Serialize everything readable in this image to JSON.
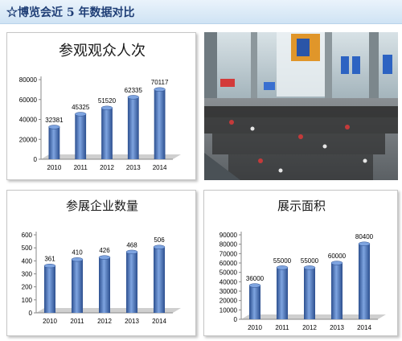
{
  "header": {
    "title": "☆博览会近 5 年数据对比"
  },
  "colors": {
    "bar": "#4a78c4",
    "bar_dark": "#2c4f8f",
    "bar_light": "#7ea4e0",
    "floor": "#cfcfcf"
  },
  "chart_data": [
    {
      "type": "bar",
      "title": "参观观众人次",
      "categories": [
        "2010",
        "2011",
        "2012",
        "2013",
        "2014"
      ],
      "values": [
        32381,
        45325,
        51520,
        62335,
        70117
      ],
      "ylim": [
        0,
        80000
      ],
      "yticks": [
        0,
        20000,
        40000,
        60000,
        80000
      ],
      "grid": false
    },
    {
      "type": "bar",
      "title": "参展企业数量",
      "categories": [
        "2010",
        "2011",
        "2012",
        "2013",
        "2014"
      ],
      "values": [
        361,
        410,
        426,
        468,
        506
      ],
      "ylim": [
        0,
        600
      ],
      "yticks": [
        0,
        100,
        200,
        300,
        400,
        500,
        600
      ],
      "grid": false
    },
    {
      "type": "bar",
      "title": "展示面积",
      "categories": [
        "2010",
        "2011",
        "2012",
        "2013",
        "2014"
      ],
      "values": [
        36000,
        55000,
        55000,
        60000,
        80400
      ],
      "ylim": [
        0,
        90000
      ],
      "yticks": [
        0,
        10000,
        20000,
        30000,
        40000,
        50000,
        60000,
        70000,
        80000,
        90000
      ],
      "grid": false
    }
  ]
}
